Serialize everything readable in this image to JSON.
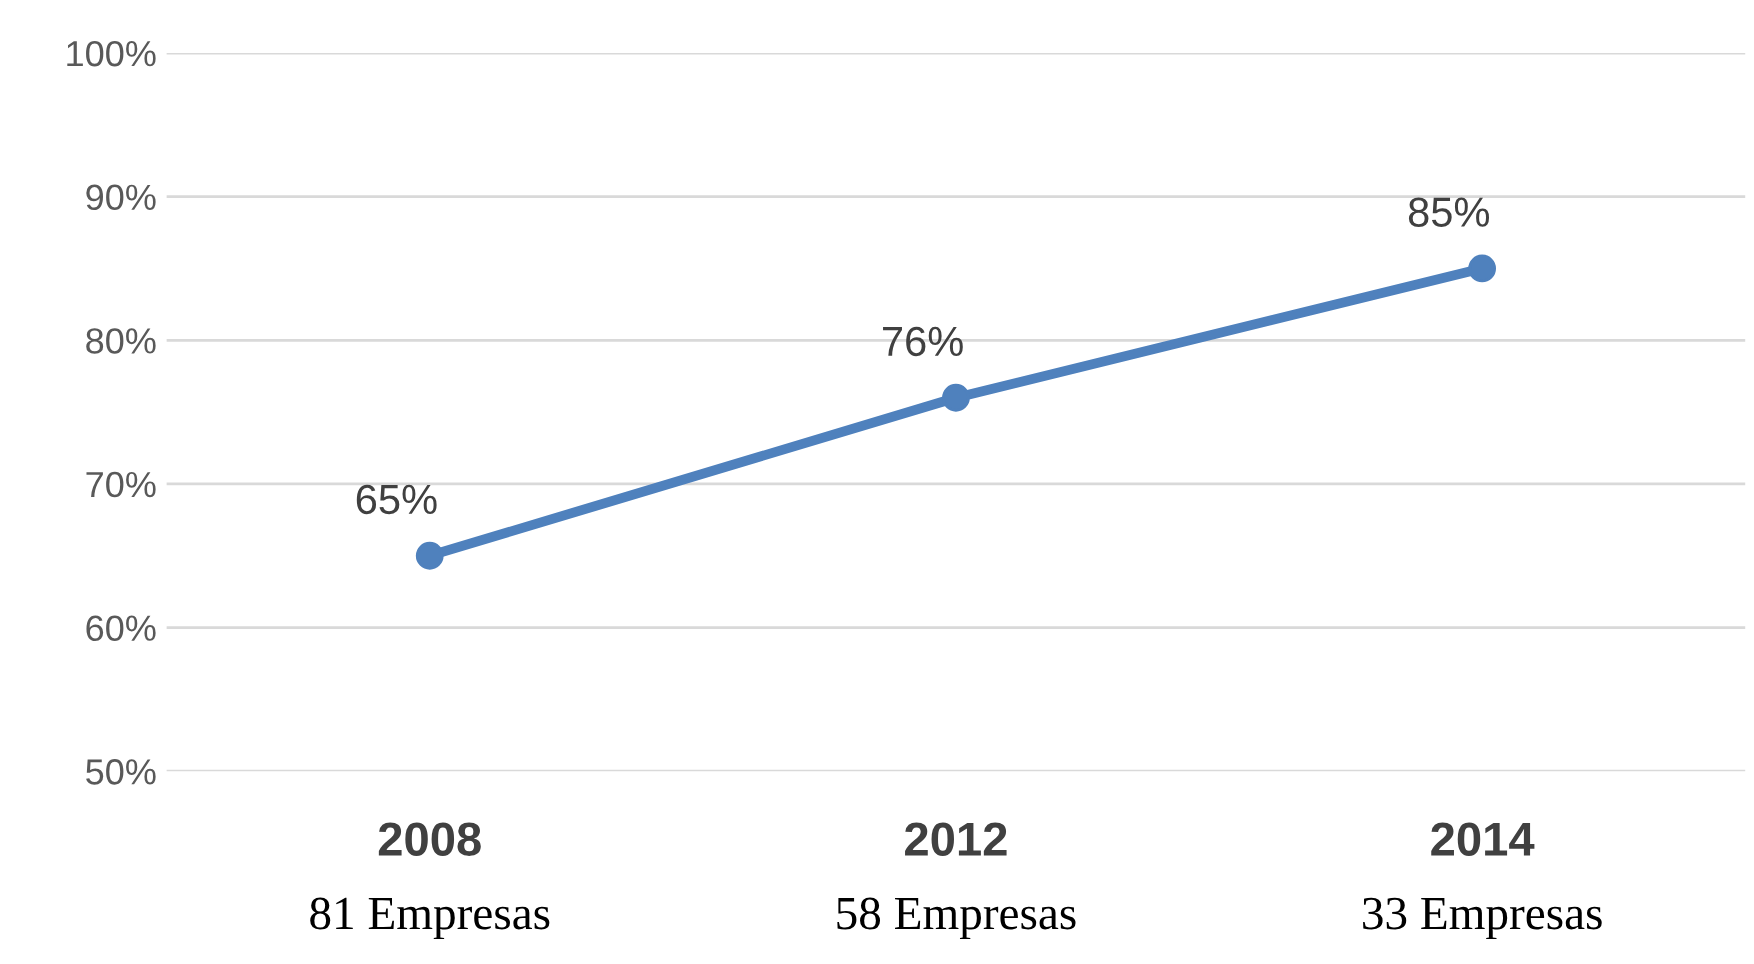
{
  "chart_data": {
    "type": "line",
    "categories": [
      "2008\n81 Empresas",
      "2012\n58 Empresas",
      "2014\n33 Empresas"
    ],
    "series": [
      {
        "color": "#4f81bd",
        "values": [
          65,
          76,
          85
        ],
        "value_labels": [
          "65%",
          "76%",
          "85%"
        ]
      }
    ],
    "ylim": [
      50,
      100
    ],
    "yticks": [
      {
        "value": 50,
        "label": "50%"
      },
      {
        "value": 60,
        "label": "60%"
      },
      {
        "value": 70,
        "label": "70%"
      },
      {
        "value": 80,
        "label": "80%"
      },
      {
        "value": 90,
        "label": "90%"
      },
      {
        "value": 100,
        "label": "100%"
      }
    ],
    "grid": "y",
    "marker": "circle",
    "line_style": "solid",
    "legend": false
  }
}
